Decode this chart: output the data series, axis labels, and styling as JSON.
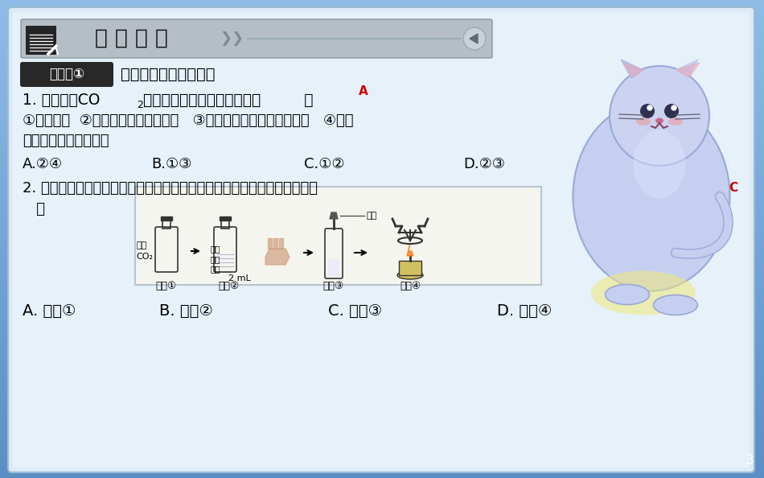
{
  "fig_width": 9.5,
  "fig_height": 5.94,
  "dpi": 100,
  "bg_outer": "#5b8fc5",
  "content_bg": "#ddeaf6",
  "inner_bg": "#e6f1fa",
  "title_bar_bg": "#b5bec6",
  "title_bar_text": "对 点 精 练",
  "kp_badge_bg": "#282828",
  "kp_badge_text": "知识点①",
  "kp_title": "二氧化碳的性质和用途",
  "q1_prefix": "1. 下列关于CO",
  "q1_sub": "2",
  "q1_suffix": "性质的信息，组合正确的是（         ）",
  "q1_answer": "A",
  "q1_line1": "①可以助燃  ②能使澄清石灰水变浑浊   ③可溶于水，但不能与水反应   ④可供",
  "q1_line2": "绿色植物进行光合作用",
  "q1_A": "A.②④",
  "q1_B": "B.①③",
  "q1_C": "C.①②",
  "q1_D": "D.②③",
  "q2_line1": "2. 为了验证二氧化碳与水反应生成碳酸，小赵做了以下实验，不合理的是（",
  "q2_line2": "   ）",
  "q2_answer": "C",
  "q2_A": "A. 步骤①",
  "q2_B": "B. 步骤②",
  "q2_C": "C. 步骤③",
  "q2_D": "D. 步骤④",
  "page_num": "3",
  "answer_color": "#cc0000",
  "text_color": "#000000",
  "step_labels": [
    "步骤①",
    "步骤②",
    "步骤③",
    "步骤④"
  ],
  "co2_label": "充满\nCO₂",
  "shake_label": "注水\n充分\n振荡",
  "vol_label": "2 mL",
  "acid_label": "酚酞",
  "cat_body_color": "#c5cff0",
  "cat_outline": "#9aa8d8"
}
